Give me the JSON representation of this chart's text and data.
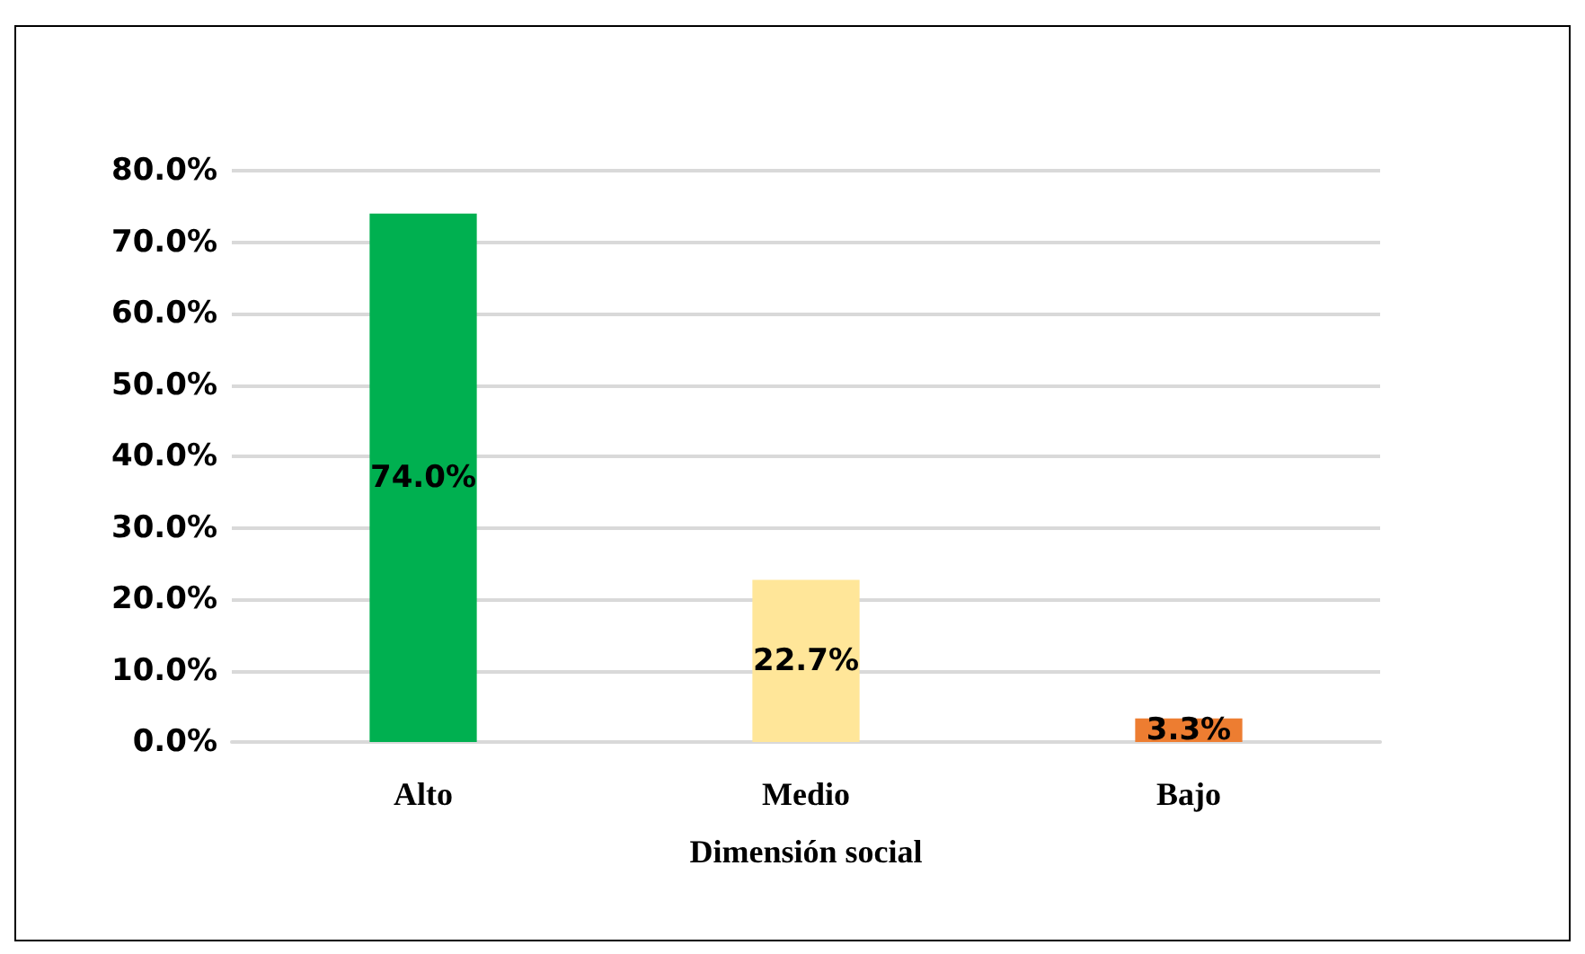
{
  "chart_data": {
    "type": "bar",
    "xlabel": "Dimensión social",
    "categories": [
      "Alto",
      "Medio",
      "Bajo"
    ],
    "values": [
      74.0,
      22.7,
      3.3
    ],
    "colors": [
      "#00b050",
      "#ffe699",
      "#ed7d31"
    ],
    "value_labels": [
      "74.0%",
      "22.7%",
      "3.3%"
    ],
    "ylim": [
      0,
      80
    ],
    "yticks": [
      {
        "value": 0,
        "label": "0.0%"
      },
      {
        "value": 10,
        "label": "10.0%"
      },
      {
        "value": 20,
        "label": "20.0%"
      },
      {
        "value": 30,
        "label": "30.0%"
      },
      {
        "value": 40,
        "label": "40.0%"
      },
      {
        "value": 50,
        "label": "50.0%"
      },
      {
        "value": 60,
        "label": "60.0%"
      },
      {
        "value": 70,
        "label": "70.0%"
      },
      {
        "value": 80,
        "label": "80.0%"
      }
    ],
    "grid": "y"
  }
}
